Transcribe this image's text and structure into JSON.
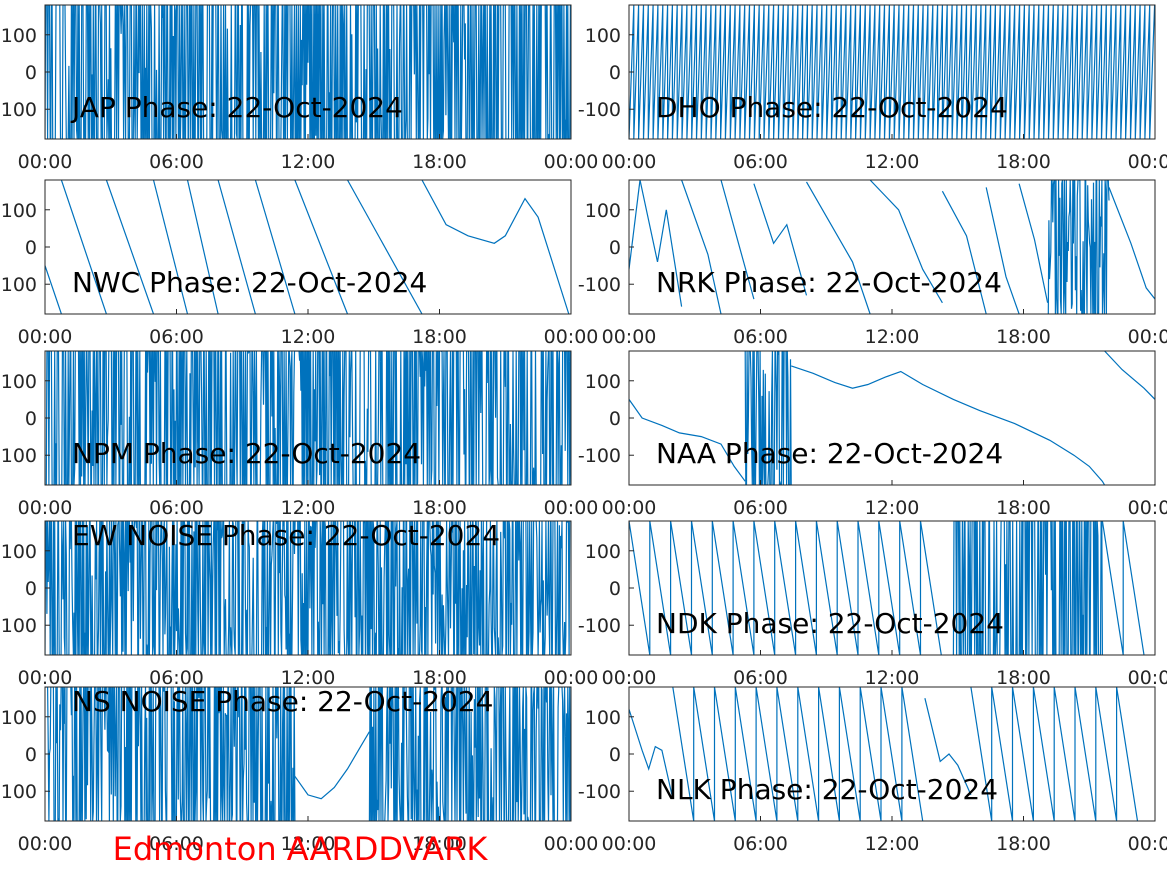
{
  "figure": {
    "footer": "Edmonton AARDDVARK",
    "footer_color": "#ff0000",
    "line_color": "#0072bd"
  },
  "chart_data": [
    {
      "type": "line",
      "title": "JAP Phase: 22-Oct-2024",
      "yticks": [
        "100",
        "0",
        "100"
      ],
      "xticks": [
        "00:00",
        "06:00",
        "12:00",
        "18:00",
        "00:00"
      ],
      "ylim": [
        -180,
        180
      ],
      "xlim_hours": [
        0,
        24
      ],
      "segments": [
        {
          "kind": "noise",
          "from": 0,
          "to": 24,
          "density": 0.92
        }
      ]
    },
    {
      "type": "line",
      "title": "DHO Phase: 22-Oct-2024",
      "yticks": [
        "100",
        "0",
        "-100"
      ],
      "xticks": [
        "00:00",
        "06:00",
        "12:00",
        "18:00",
        "00:00"
      ],
      "ylim": [
        -180,
        180
      ],
      "xlim_hours": [
        0,
        24
      ],
      "segments": [
        {
          "kind": "wraps",
          "from": 0,
          "to": 24,
          "period": 0.22,
          "dir": "up"
        }
      ]
    },
    {
      "type": "line",
      "title": "NWC Phase: 22-Oct-2024",
      "yticks": [
        "100",
        "0",
        "100"
      ],
      "xticks": [
        "00:00",
        "06:00",
        "12:00",
        "18:00",
        "00:00"
      ],
      "ylim": [
        -180,
        180
      ],
      "xlim_hours": [
        0,
        24
      ],
      "segments": [
        {
          "kind": "points",
          "pts": [
            [
              0,
              -50
            ],
            [
              0.75,
              -180
            ]
          ]
        },
        {
          "kind": "points",
          "pts": [
            [
              0.75,
              180
            ],
            [
              2.8,
              -180
            ]
          ]
        },
        {
          "kind": "points",
          "pts": [
            [
              2.8,
              180
            ],
            [
              4.95,
              -180
            ]
          ]
        },
        {
          "kind": "points",
          "pts": [
            [
              4.95,
              180
            ],
            [
              6.5,
              -180
            ]
          ]
        },
        {
          "kind": "points",
          "pts": [
            [
              6.5,
              180
            ],
            [
              7.9,
              -180
            ]
          ]
        },
        {
          "kind": "points",
          "pts": [
            [
              7.9,
              180
            ],
            [
              9.6,
              -180
            ]
          ]
        },
        {
          "kind": "points",
          "pts": [
            [
              9.6,
              180
            ],
            [
              11.4,
              -180
            ]
          ]
        },
        {
          "kind": "points",
          "pts": [
            [
              11.4,
              180
            ],
            [
              13.8,
              -180
            ]
          ]
        },
        {
          "kind": "points",
          "pts": [
            [
              13.8,
              180
            ],
            [
              17.2,
              -180
            ]
          ]
        },
        {
          "kind": "points",
          "pts": [
            [
              17.2,
              180
            ],
            [
              18.3,
              60
            ],
            [
              19.3,
              30
            ],
            [
              20.5,
              10
            ],
            [
              21.0,
              30
            ],
            [
              21.9,
              130
            ],
            [
              22.5,
              80
            ],
            [
              23.9,
              -180
            ]
          ]
        }
      ]
    },
    {
      "type": "line",
      "title": "NRK Phase: 22-Oct-2024",
      "yticks": [
        "100",
        "0",
        "-100"
      ],
      "xticks": [
        "00:00",
        "06:00",
        "12:00",
        "18:00",
        "00:00"
      ],
      "ylim": [
        -180,
        180
      ],
      "xlim_hours": [
        0,
        24
      ],
      "segments": [
        {
          "kind": "points",
          "pts": [
            [
              0,
              -60
            ],
            [
              0.5,
              180
            ]
          ]
        },
        {
          "kind": "points",
          "pts": [
            [
              0.5,
              180
            ],
            [
              1.3,
              -40
            ],
            [
              1.7,
              100
            ],
            [
              2.4,
              -160
            ]
          ]
        },
        {
          "kind": "points",
          "pts": [
            [
              2.4,
              180
            ],
            [
              3.6,
              -20
            ],
            [
              4.2,
              -180
            ]
          ]
        },
        {
          "kind": "points",
          "pts": [
            [
              4.2,
              180
            ],
            [
              5.7,
              -140
            ]
          ]
        },
        {
          "kind": "points",
          "pts": [
            [
              5.7,
              170
            ],
            [
              6.6,
              10
            ],
            [
              7.2,
              60
            ],
            [
              8.1,
              -130
            ]
          ]
        },
        {
          "kind": "points",
          "pts": [
            [
              8.1,
              175
            ],
            [
              10.2,
              -40
            ],
            [
              11.0,
              -180
            ]
          ]
        },
        {
          "kind": "points",
          "pts": [
            [
              11.0,
              180
            ],
            [
              12.3,
              100
            ],
            [
              13.4,
              -60
            ],
            [
              14.3,
              -150
            ]
          ]
        },
        {
          "kind": "points",
          "pts": [
            [
              14.3,
              150
            ],
            [
              15.4,
              30
            ],
            [
              16.3,
              -180
            ]
          ]
        },
        {
          "kind": "points",
          "pts": [
            [
              16.3,
              160
            ],
            [
              17.2,
              -80
            ],
            [
              17.8,
              -180
            ]
          ]
        },
        {
          "kind": "points",
          "pts": [
            [
              17.8,
              170
            ],
            [
              18.5,
              20
            ],
            [
              19.1,
              -150
            ]
          ]
        },
        {
          "kind": "noise",
          "from": 19.1,
          "to": 21.9,
          "density": 0.55
        },
        {
          "kind": "points",
          "pts": [
            [
              21.9,
              160
            ],
            [
              22.9,
              10
            ],
            [
              23.6,
              -110
            ],
            [
              24,
              -140
            ]
          ]
        }
      ]
    },
    {
      "type": "line",
      "title": "NPM Phase: 22-Oct-2024",
      "yticks": [
        "100",
        "0",
        "100"
      ],
      "xticks": [
        "00:00",
        "06:00",
        "12:00",
        "18:00",
        "00:00"
      ],
      "ylim": [
        -180,
        180
      ],
      "xlim_hours": [
        0,
        24
      ],
      "segments": [
        {
          "kind": "noise",
          "from": 0,
          "to": 24,
          "density": 0.88
        }
      ]
    },
    {
      "type": "line",
      "title": "NAA Phase: 22-Oct-2024",
      "yticks": [
        "100",
        "0",
        "-100"
      ],
      "xticks": [
        "00:00",
        "06:00",
        "12:00",
        "18:00",
        "00:00"
      ],
      "ylim": [
        -180,
        180
      ],
      "xlim_hours": [
        0,
        24
      ],
      "segments": [
        {
          "kind": "points",
          "pts": [
            [
              0,
              50
            ],
            [
              0.6,
              0
            ],
            [
              1.5,
              -20
            ],
            [
              2.3,
              -40
            ],
            [
              3.3,
              -50
            ],
            [
              4.2,
              -70
            ],
            [
              4.8,
              -130
            ],
            [
              5.3,
              -170
            ]
          ]
        },
        {
          "kind": "noise",
          "from": 5.3,
          "to": 7.4,
          "density": 0.7
        },
        {
          "kind": "points",
          "pts": [
            [
              7.4,
              140
            ],
            [
              8.4,
              120
            ],
            [
              9.4,
              95
            ],
            [
              10.2,
              80
            ],
            [
              10.9,
              90
            ],
            [
              11.7,
              110
            ],
            [
              12.4,
              125
            ],
            [
              13.4,
              90
            ],
            [
              14.8,
              50
            ],
            [
              16.0,
              20
            ],
            [
              17.6,
              -15
            ],
            [
              19.2,
              -60
            ],
            [
              20.3,
              -100
            ],
            [
              21.0,
              -130
            ],
            [
              21.6,
              -170
            ],
            [
              21.7,
              -180
            ]
          ]
        },
        {
          "kind": "points",
          "pts": [
            [
              21.7,
              180
            ],
            [
              22.5,
              130
            ],
            [
              23.5,
              80
            ],
            [
              24,
              50
            ]
          ]
        }
      ]
    },
    {
      "type": "line",
      "title": "EW NOISE Phase: 22-Oct-2024",
      "yticks": [
        "100",
        "0",
        "100"
      ],
      "xticks": [
        "00:00",
        "06:00",
        "12:00",
        "18:00",
        "00:00"
      ],
      "ylim": [
        -180,
        180
      ],
      "xlim_hours": [
        0,
        24
      ],
      "segments": [
        {
          "kind": "noise",
          "from": 0,
          "to": 24,
          "density": 0.75
        }
      ]
    },
    {
      "type": "line",
      "title": "NDK Phase: 22-Oct-2024",
      "yticks": [
        "100",
        "0",
        "-100"
      ],
      "xticks": [
        "00:00",
        "06:00",
        "12:00",
        "18:00",
        "00:00"
      ],
      "ylim": [
        -180,
        180
      ],
      "xlim_hours": [
        0,
        24
      ],
      "segments": [
        {
          "kind": "wraps",
          "from": 0,
          "to": 14.8,
          "period": 0.95,
          "dir": "down"
        },
        {
          "kind": "noise",
          "from": 14.8,
          "to": 21.6,
          "density": 0.95
        },
        {
          "kind": "wraps",
          "from": 21.6,
          "to": 24,
          "period": 0.95,
          "dir": "down"
        }
      ]
    },
    {
      "type": "line",
      "title": "NS NOISE Phase: 22-Oct-2024",
      "yticks": [
        "100",
        "0",
        "100"
      ],
      "xticks": [
        "00:00",
        "06:00",
        "12:00",
        "18:00",
        "00:00"
      ],
      "ylim": [
        -180,
        180
      ],
      "xlim_hours": [
        0,
        24
      ],
      "segments": [
        {
          "kind": "noise",
          "from": 0,
          "to": 11.4,
          "density": 0.8
        },
        {
          "kind": "points",
          "pts": [
            [
              11.4,
              -60
            ],
            [
              12.0,
              -110
            ],
            [
              12.6,
              -120
            ],
            [
              13.2,
              -90
            ],
            [
              13.8,
              -40
            ],
            [
              14.4,
              20
            ],
            [
              14.8,
              60
            ]
          ]
        },
        {
          "kind": "noise",
          "from": 14.8,
          "to": 24,
          "density": 0.8
        }
      ]
    },
    {
      "type": "line",
      "title": "NLK Phase: 22-Oct-2024",
      "yticks": [
        "100",
        "0",
        "-100"
      ],
      "xticks": [
        "00:00",
        "06:00",
        "12:00",
        "18:00",
        "00:00"
      ],
      "ylim": [
        -180,
        180
      ],
      "xlim_hours": [
        0,
        24
      ],
      "segments": [
        {
          "kind": "points",
          "pts": [
            [
              0,
              120
            ],
            [
              0.6,
              10
            ],
            [
              0.9,
              -40
            ],
            [
              1.2,
              20
            ],
            [
              1.5,
              10
            ],
            [
              2.0,
              -120
            ]
          ]
        },
        {
          "kind": "wraps",
          "from": 2.0,
          "to": 13.5,
          "period": 0.95,
          "dir": "down"
        },
        {
          "kind": "points",
          "pts": [
            [
              13.5,
              150
            ],
            [
              14.2,
              -20
            ],
            [
              14.6,
              0
            ],
            [
              15.0,
              -30
            ],
            [
              15.6,
              -110
            ]
          ]
        },
        {
          "kind": "wraps",
          "from": 15.6,
          "to": 24,
          "period": 0.95,
          "dir": "down"
        }
      ]
    }
  ]
}
